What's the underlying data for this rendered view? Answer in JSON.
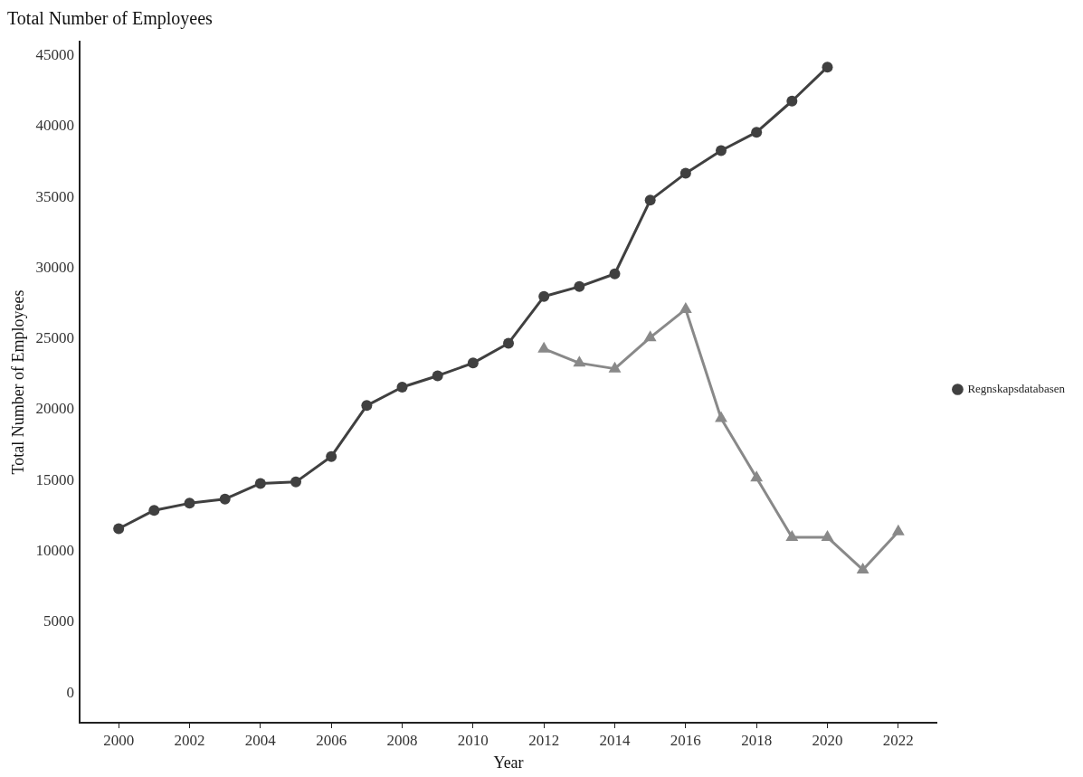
{
  "chart_data": {
    "type": "line",
    "title": "Total Number of Employees",
    "xlabel": "Year",
    "ylabel": "Total Number of Employees",
    "xlim": [
      1998.9,
      2023.1
    ],
    "xticks": [
      2000,
      2002,
      2004,
      2006,
      2008,
      2010,
      2012,
      2014,
      2016,
      2018,
      2020,
      2022
    ],
    "ylim": [
      -2100,
      46000
    ],
    "yticks": [
      0,
      5000,
      10000,
      15000,
      20000,
      25000,
      30000,
      35000,
      40000,
      45000
    ],
    "grid": false,
    "legend": "right",
    "line_style": "solid",
    "series": [
      {
        "color": "#898989",
        "marker": "triangle",
        "x": [
          2012,
          2013,
          2014,
          2015,
          2016,
          2017,
          2018,
          2019,
          2020,
          2021,
          2022
        ],
        "values": [
          24300,
          23300,
          22900,
          25100,
          27100,
          19400,
          15200,
          11000,
          11000,
          8700,
          11400
        ]
      },
      {
        "name": "Regnskapsdatabasen",
        "color": "#404040",
        "marker": "circle",
        "x": [
          2000,
          2001,
          2002,
          2003,
          2004,
          2005,
          2006,
          2007,
          2008,
          2009,
          2010,
          2011,
          2012,
          2013,
          2014,
          2015,
          2016,
          2017,
          2018,
          2019,
          2020
        ],
        "values": [
          11600,
          12900,
          13400,
          13700,
          14800,
          14900,
          16700,
          20300,
          21600,
          22400,
          23300,
          24700,
          28000,
          28700,
          29600,
          34800,
          36700,
          38300,
          39600,
          41800,
          44200
        ]
      }
    ]
  }
}
